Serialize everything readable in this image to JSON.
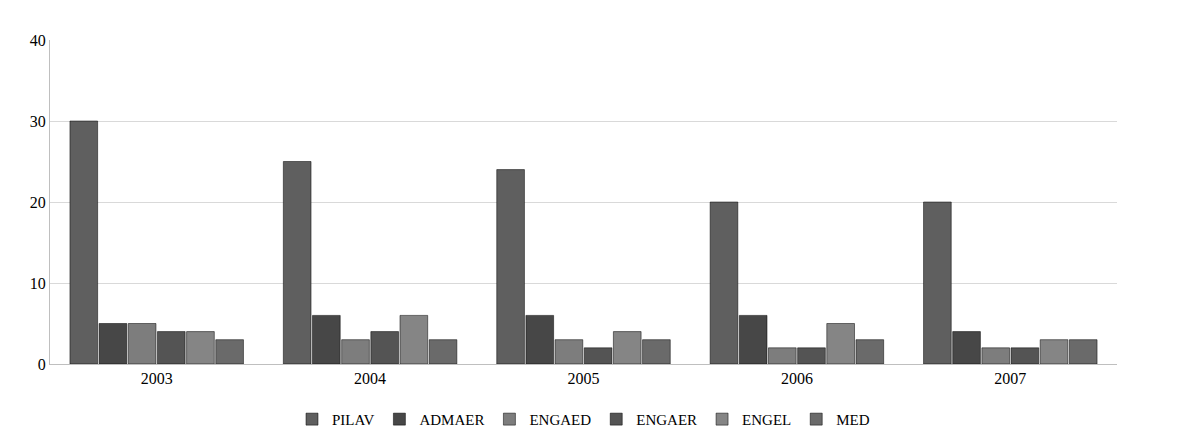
{
  "chart_data": {
    "type": "bar",
    "categories": [
      "2003",
      "2004",
      "2005",
      "2006",
      "2007"
    ],
    "series": [
      {
        "name": "PILAV",
        "color": "#5f5f5f",
        "values": [
          30,
          25,
          24,
          20,
          20
        ]
      },
      {
        "name": "ADMAER",
        "color": "#474747",
        "values": [
          5,
          6,
          6,
          6,
          4
        ]
      },
      {
        "name": "ENGAED",
        "color": "#7d7d7d",
        "values": [
          5,
          3,
          3,
          2,
          2
        ]
      },
      {
        "name": "ENGAER",
        "color": "#545454",
        "values": [
          4,
          4,
          2,
          2,
          2
        ]
      },
      {
        "name": "ENGEL",
        "color": "#858585",
        "values": [
          4,
          6,
          4,
          5,
          3
        ]
      },
      {
        "name": "MED",
        "color": "#6a6a6a",
        "values": [
          3,
          3,
          3,
          3,
          3
        ]
      }
    ],
    "ylim": [
      0,
      40
    ],
    "yticks": [
      0,
      10,
      20,
      30,
      40
    ],
    "grid": true,
    "legend": "bottom"
  }
}
